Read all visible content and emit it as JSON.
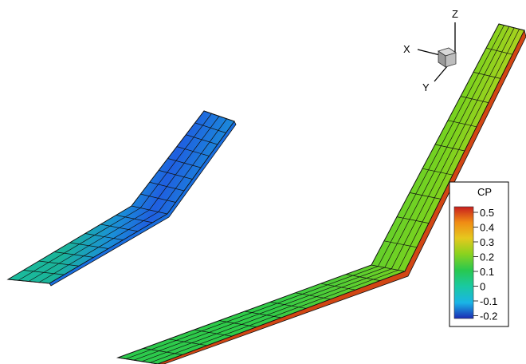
{
  "colorbar": {
    "title": "CP",
    "levels": [
      "0.5",
      "0.4",
      "0.3",
      "0.2",
      "0.1",
      "0",
      "-0.1",
      "-0.2"
    ]
  },
  "axes": {
    "x_label": "X",
    "y_label": "Y",
    "z_label": "Z"
  },
  "colormap": [
    "#1a1aa0",
    "#1f5fe0",
    "#1ab4e6",
    "#1ac9a0",
    "#28c850",
    "#5ed21e",
    "#a0d21e",
    "#e6c81e",
    "#f08c14",
    "#e04614",
    "#c81e1e"
  ]
}
